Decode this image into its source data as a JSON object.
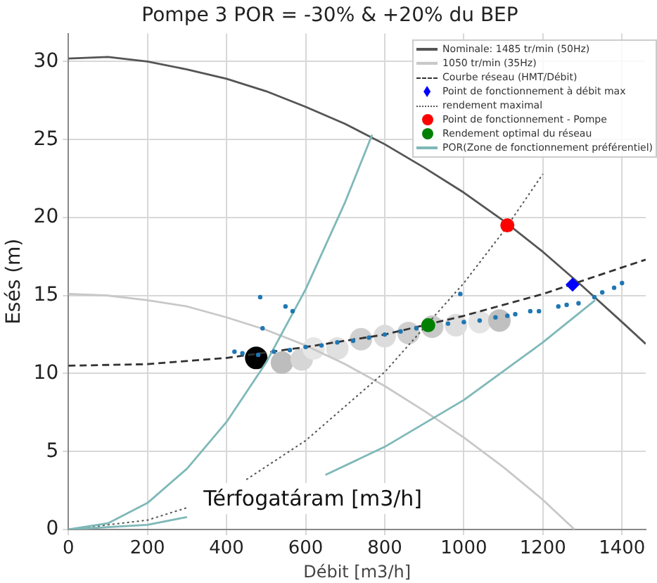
{
  "chart_data": {
    "type": "line",
    "title": "Pompe 3 POR = -30% & +20% du BEP",
    "xlabel": "Débit [m3/h]",
    "ylabel": "Esés (m)",
    "annotations": [
      "Térfogatáram [m3/h]"
    ],
    "xlim": [
      0,
      1460
    ],
    "xticks": [
      0,
      200,
      400,
      600,
      800,
      1000,
      1200,
      1400
    ],
    "ylim": [
      0,
      31.8
    ],
    "yticks": [
      0,
      5,
      10,
      15,
      20,
      25,
      30
    ],
    "grid": true,
    "legend": "top right",
    "series": [
      {
        "name": "Nominale: 1485 tr/min (50Hz)",
        "line_style": "solid",
        "color": "#555555",
        "x": [
          0,
          100,
          200,
          300,
          400,
          500,
          600,
          700,
          800,
          900,
          1000,
          1100,
          1200,
          1300,
          1400,
          1460
        ],
        "values": [
          30.2,
          30.3,
          30.0,
          29.5,
          28.9,
          28.1,
          27.1,
          26.0,
          24.7,
          23.2,
          21.6,
          19.8,
          17.8,
          15.6,
          13.3,
          11.9
        ]
      },
      {
        "name": "1050 tr/min (35Hz)",
        "line_style": "solid",
        "color": "#c8c8c8",
        "x": [
          0,
          100,
          200,
          300,
          400,
          500,
          600,
          700,
          800,
          900,
          1000,
          1100,
          1200,
          1280
        ],
        "values": [
          15.1,
          15.0,
          14.7,
          14.3,
          13.6,
          12.8,
          11.8,
          10.6,
          9.2,
          7.6,
          5.9,
          4.0,
          1.9,
          0
        ]
      },
      {
        "name": "Courbe réseau (HMT/Débit)",
        "line_style": "dashed",
        "color": "#333333",
        "x": [
          0,
          200,
          400,
          600,
          800,
          1000,
          1200,
          1400,
          1460
        ],
        "values": [
          10.5,
          10.6,
          11.0,
          11.7,
          12.5,
          13.7,
          15.1,
          16.8,
          17.3
        ]
      },
      {
        "name": "Point de fonctionnement à débit max",
        "type": "scatter",
        "marker": "diamond",
        "color": "#0000ff",
        "x": [
          1275
        ],
        "values": [
          15.7
        ]
      },
      {
        "name": "rendement maximal",
        "line_style": "dotted",
        "color": "#555555",
        "x": [
          0,
          200,
          300,
          400,
          450,
          600,
          800,
          1000,
          1100,
          1200
        ],
        "values": [
          0,
          0.6,
          1.4,
          null,
          3.2,
          5.7,
          10.1,
          15.8,
          19.1,
          22.8
        ]
      },
      {
        "name": "Point de fonctionnement - Pompe",
        "type": "scatter",
        "marker": "circle",
        "color": "#ff0000",
        "x": [
          1110
        ],
        "values": [
          19.5
        ]
      },
      {
        "name": "Rendement optimal du réseau",
        "type": "scatter",
        "marker": "circle",
        "color": "#008000",
        "x": [
          910
        ],
        "values": [
          13.1
        ]
      },
      {
        "name": "POR(Zone de fonctionnement préférentiel)",
        "line_style": "solid",
        "color": "#7fb8b8",
        "x": [
          0,
          100,
          200,
          300,
          400,
          500,
          600,
          700,
          768
        ],
        "values": [
          0,
          0.4,
          1.7,
          3.9,
          6.9,
          10.7,
          15.4,
          21.0,
          25.3
        ]
      },
      {
        "line_style": "solid",
        "color": "#7fb8b8",
        "x": [
          0,
          200,
          300,
          400,
          650,
          800,
          1000,
          1200,
          1332
        ],
        "values": [
          0,
          0.3,
          0.8,
          null,
          3.5,
          5.3,
          8.3,
          12.0,
          14.7
        ]
      },
      {
        "type": "scatter",
        "colors": [
          "#000000",
          "#bdbdbd",
          "#d6d6d6",
          "#e6e6e6",
          "#e0e0e0",
          "#d0d0d0",
          "#dcdcdc",
          "#cfcfcf",
          "#c8c8c8",
          "#dedede",
          "#e4e4e4",
          "#c0c0c0"
        ],
        "x": [
          475,
          540,
          590,
          620,
          680,
          740,
          800,
          860,
          920,
          980,
          1040,
          1090
        ],
        "values": [
          11.0,
          10.7,
          10.9,
          11.6,
          11.6,
          12.2,
          12.4,
          12.6,
          13.0,
          13.1,
          13.3,
          13.4
        ]
      },
      {
        "type": "scatter",
        "marker": "circle",
        "color": "#1f77b4",
        "x": [
          420,
          440,
          480,
          520,
          560,
          600,
          640,
          680,
          720,
          760,
          800,
          840,
          880,
          960,
          1000,
          1040,
          1080,
          1110,
          1130,
          485,
          491,
          549,
          567,
          991,
          1168,
          1190,
          1239,
          1260,
          1290,
          1330,
          1350,
          1380,
          1400
        ],
        "values": [
          11.4,
          11.3,
          11.2,
          11.4,
          11.5,
          11.7,
          11.8,
          12.0,
          12.1,
          12.3,
          12.5,
          12.7,
          12.9,
          13.2,
          13.3,
          13.4,
          13.6,
          13.7,
          13.8,
          14.9,
          12.9,
          14.3,
          14.0,
          15.1,
          14.0,
          14.0,
          14.3,
          14.4,
          14.5,
          14.9,
          15.2,
          15.5,
          15.8
        ]
      }
    ]
  }
}
